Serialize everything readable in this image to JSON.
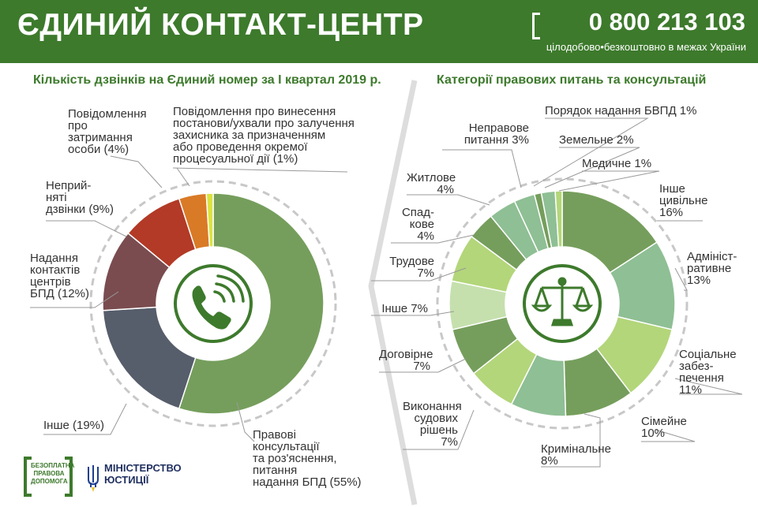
{
  "header": {
    "title": "ЄДИНИЙ КОНТАКТ-ЦЕНТР",
    "phone": "0 800 213 103",
    "subtitle": "цілодобово•безкоштовно в межах України"
  },
  "colors": {
    "brand_green": "#3d7a2c",
    "left_chart": [
      "#759e5c",
      "#565d6b",
      "#7a4c4f",
      "#b23a26",
      "#d97a26",
      "#dbe33f"
    ],
    "right_chart": [
      "#759e5c",
      "#8fbf94",
      "#b3d67a",
      "#759e5c",
      "#8fbf94",
      "#b3d67a",
      "#759e5c",
      "#c5e0ad",
      "#b3d67a",
      "#759e5c",
      "#8fbf94",
      "#8fbf94",
      "#759e5c",
      "#8fbf94",
      "#b3d67a"
    ]
  },
  "icons": {
    "left_center": "phone-icon",
    "right_center": "scales-icon"
  },
  "chart_data": [
    {
      "type": "pie",
      "title": "Кількість дзвінків  на  Єдиний номер за I квартал 2019 р.",
      "slices": [
        {
          "label": "Правові консультації та роз'яснення, питання надання БПД (55%)",
          "lines": [
            "Правові",
            "консультації",
            "та роз'яснення,",
            "питання",
            "надання БПД (55%)"
          ],
          "value": 55
        },
        {
          "label": "Інше (19%)",
          "lines": [
            "Інше (19%)"
          ],
          "value": 19
        },
        {
          "label": "Надання контактів центрів БПД (12%)",
          "lines": [
            "Надання",
            "контактів",
            "центрів",
            "БПД (12%)"
          ],
          "value": 12
        },
        {
          "label": "Неприйняті дзвінки (9%)",
          "lines": [
            "Неприй-",
            "няті",
            "дзвінки (9%)"
          ],
          "value": 9
        },
        {
          "label": "Повідомлення про затримання особи (4%)",
          "lines": [
            "Повідомлення",
            "про",
            "затримання",
            "особи (4%)"
          ],
          "value": 4
        },
        {
          "label": "Повідомлення про винесення постанови/ухвали про залучення захисника за призначенням або проведення окремої процесуальної дії (1%)",
          "lines": [
            "Повідомлення про винесення",
            "постанови/ухвали про залучення",
            "захисника за призначенням",
            "або проведення окремої",
            "процесуальної дії (1%)"
          ],
          "value": 1
        }
      ]
    },
    {
      "type": "pie",
      "title": "Категорії правових питань та консультацій",
      "slices": [
        {
          "label": "Інше цивільне 16%",
          "lines": [
            "Інше",
            "цивільне",
            "16%"
          ],
          "value": 16
        },
        {
          "label": "Адміністративне 13%",
          "lines": [
            "Адмініст-",
            "ративне",
            "13%"
          ],
          "value": 13
        },
        {
          "label": "Соціальне забезпечення 11%",
          "lines": [
            "Соціальне",
            "забез-",
            "печення",
            "11%"
          ],
          "value": 11
        },
        {
          "label": "Сімейне 10%",
          "lines": [
            "Сімейне",
            "10%"
          ],
          "value": 10
        },
        {
          "label": "Кримінальне 8%",
          "lines": [
            "Кримінальне",
            "8%"
          ],
          "value": 8
        },
        {
          "label": "Виконання судових рішень 7%",
          "lines": [
            "Виконання",
            "судових",
            "рішень",
            "7%"
          ],
          "value": 7
        },
        {
          "label": "Договірне 7%",
          "lines": [
            "Договірне",
            "7%"
          ],
          "value": 7
        },
        {
          "label": "Інше 7%",
          "lines": [
            "Інше 7%"
          ],
          "value": 7
        },
        {
          "label": "Трудове 7%",
          "lines": [
            "Трудове",
            "7%"
          ],
          "value": 7
        },
        {
          "label": "Спадкове 4%",
          "lines": [
            "Спад-",
            "кове",
            "4%"
          ],
          "value": 4
        },
        {
          "label": "Житлове 4%",
          "lines": [
            "Житлове",
            "4%"
          ],
          "value": 4
        },
        {
          "label": "Неправове питання 3%",
          "lines": [
            "Неправове",
            "питання 3%"
          ],
          "value": 3
        },
        {
          "label": "Порядок надання БВПД 1%",
          "lines": [
            "Порядок надання БВПД 1%"
          ],
          "value": 1
        },
        {
          "label": "Земельне 2%",
          "lines": [
            "Земельне 2%"
          ],
          "value": 2
        },
        {
          "label": "Медичне 1%",
          "lines": [
            "Медичне 1%"
          ],
          "value": 1
        }
      ]
    }
  ],
  "footer": {
    "logo_lines": [
      "БЕЗОПЛАТНА",
      "ПРАВОВА",
      "ДОПОМОГА"
    ],
    "ministry_lines": [
      "МІНІСТЕРСТВО",
      "ЮСТИЦІЇ"
    ]
  }
}
